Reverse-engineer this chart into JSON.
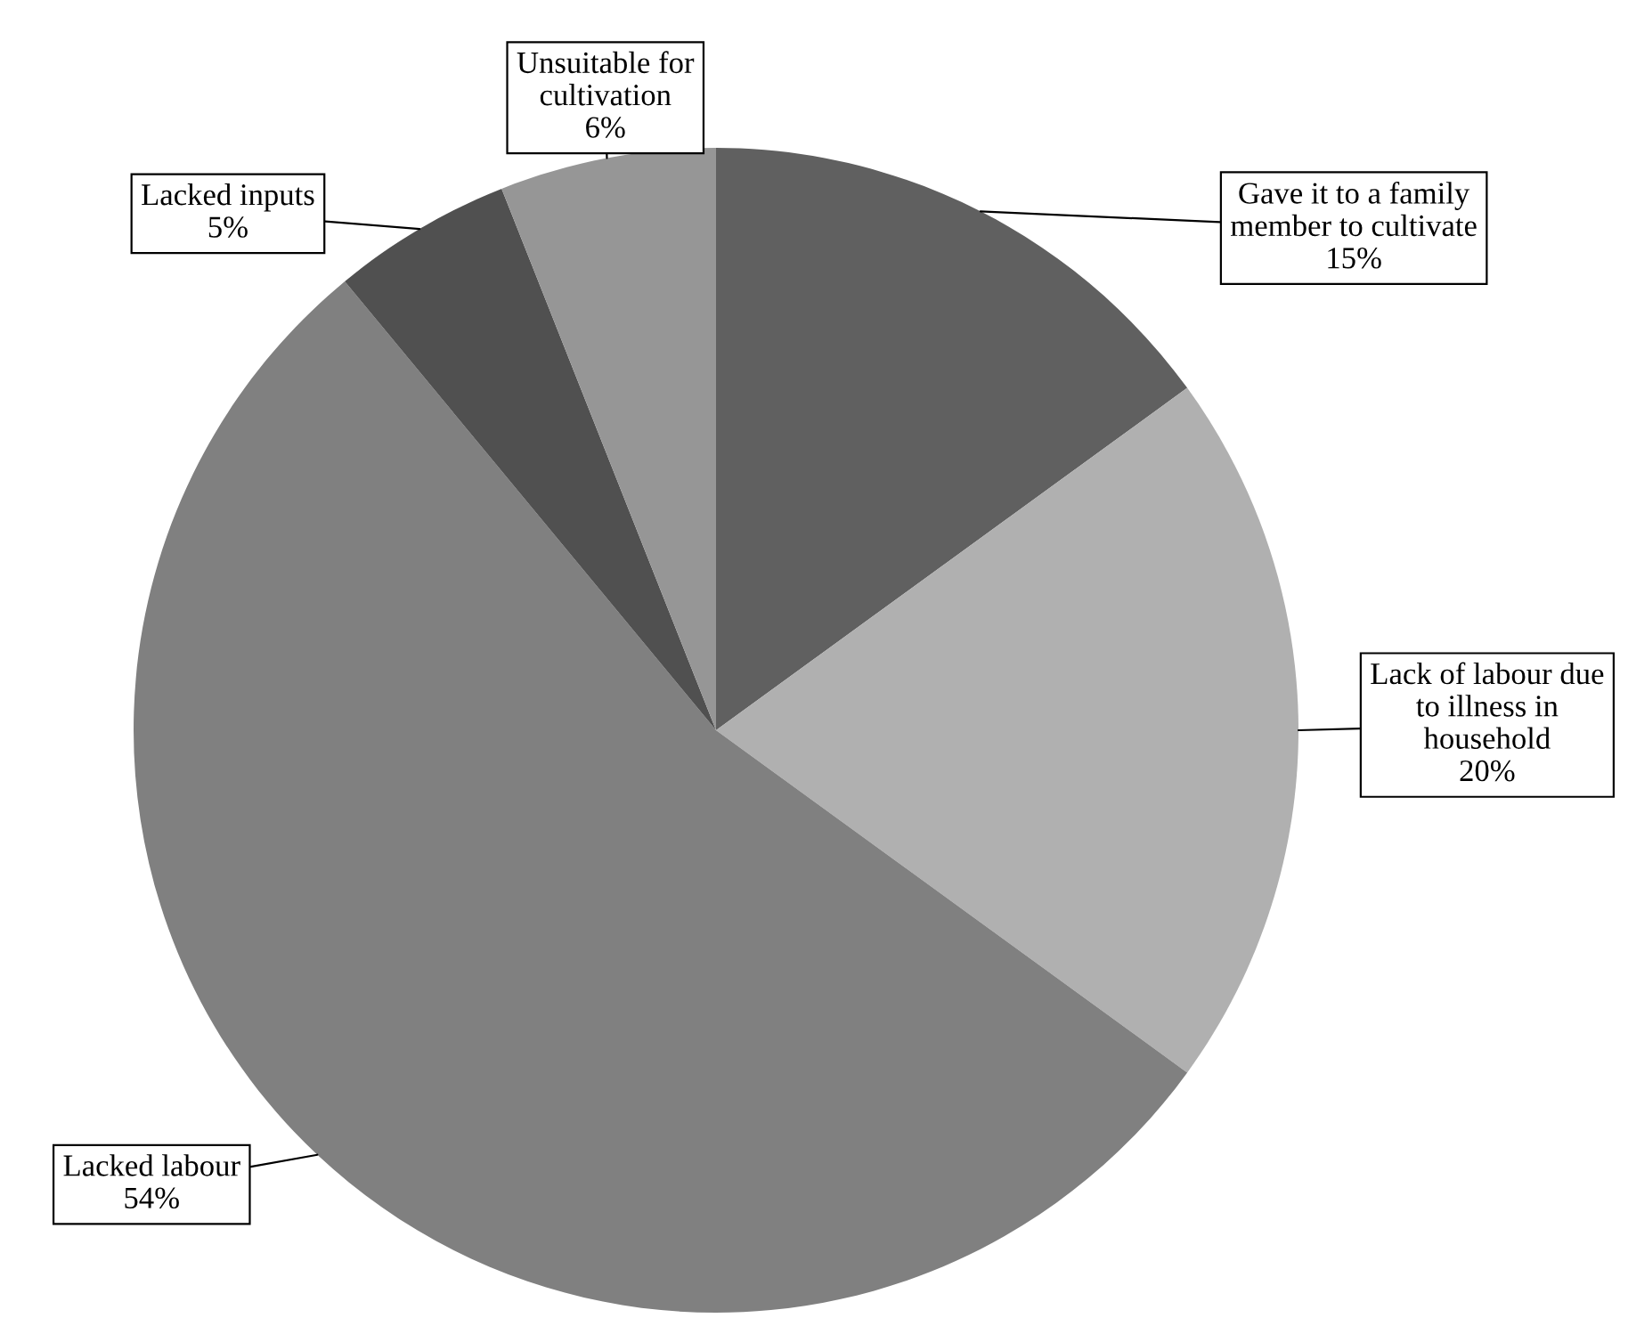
{
  "chart_data": {
    "type": "pie",
    "categories": [
      "Gave it to a family\nmember to cultivate",
      "Lack of labour due\nto illness in\nhousehold",
      "Lacked labour",
      "Lacked inputs",
      "Unsuitable for\ncultivation"
    ],
    "values": [
      15,
      20,
      54,
      5,
      6
    ],
    "value_labels": [
      "15%",
      "20%",
      "54%",
      "5%",
      "6%"
    ],
    "colors": [
      "#606060",
      "#b0b0b0",
      "#808080",
      "#505050",
      "#969696"
    ],
    "legend": false
  }
}
